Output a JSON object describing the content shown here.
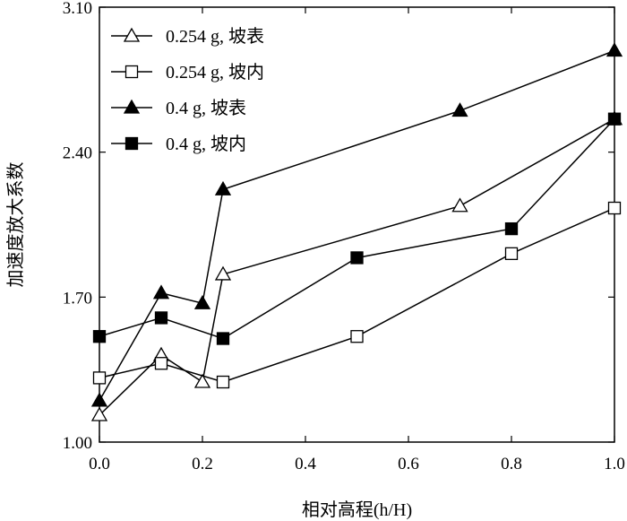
{
  "chart_data": {
    "type": "line",
    "title": "",
    "xlabel": "相对高程(h/H)",
    "ylabel": "加速度放大系数",
    "xlim": [
      0.0,
      1.0
    ],
    "ylim": [
      1.0,
      3.1
    ],
    "x_ticks": [
      "0.0",
      "0.2",
      "0.4",
      "0.6",
      "0.8",
      "1.0"
    ],
    "y_ticks": [
      "1.00",
      "1.70",
      "2.40",
      "3.10"
    ],
    "x_tick_values": [
      0.0,
      0.2,
      0.4,
      0.6,
      0.8,
      1.0
    ],
    "y_tick_values": [
      1.0,
      1.7,
      2.4,
      3.1
    ],
    "grid": false,
    "legend_position": "top-left",
    "series": [
      {
        "name": "0.254 g, 坡表",
        "marker": "triangle-open",
        "x": [
          0.0,
          0.12,
          0.2,
          0.24,
          0.7,
          1.0
        ],
        "y": [
          1.13,
          1.42,
          1.29,
          1.81,
          2.14,
          2.56
        ]
      },
      {
        "name": "0.254 g, 坡内",
        "marker": "square-open",
        "x": [
          0.0,
          0.12,
          0.24,
          0.5,
          0.8,
          1.0
        ],
        "y": [
          1.31,
          1.38,
          1.29,
          1.51,
          1.91,
          2.13
        ]
      },
      {
        "name": "0.4 g, 坡表",
        "marker": "triangle-filled",
        "x": [
          0.0,
          0.12,
          0.2,
          0.24,
          0.7,
          1.0
        ],
        "y": [
          1.2,
          1.72,
          1.67,
          2.22,
          2.6,
          2.89
        ]
      },
      {
        "name": "0.4 g, 坡内",
        "marker": "square-filled",
        "x": [
          0.0,
          0.12,
          0.24,
          0.5,
          0.8,
          1.0
        ],
        "y": [
          1.51,
          1.6,
          1.5,
          1.89,
          2.03,
          2.56
        ]
      }
    ]
  }
}
